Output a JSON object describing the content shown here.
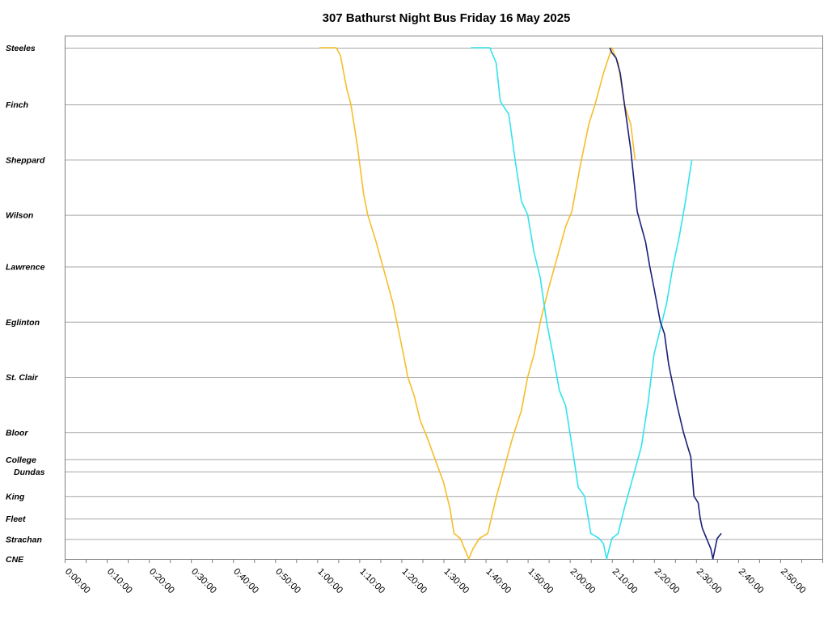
{
  "chart_data": {
    "type": "line",
    "title": "307 Bathurst Night Bus Friday 16 May 2025",
    "xlabel": "",
    "ylabel": "",
    "xlim": [
      "0:00:00",
      "3:00:00"
    ],
    "x_tick_labels": [
      "0:00:00",
      "0:10:00",
      "0:20:00",
      "0:30:00",
      "0:40:00",
      "0:50:00",
      "1:00:00",
      "1:10:00",
      "1:20:00",
      "1:30:00",
      "1:40:00",
      "1:50:00",
      "2:00:00",
      "2:10:00",
      "2:20:00",
      "2:30:00",
      "2:40:00",
      "2:50:00"
    ],
    "stops": [
      {
        "name": "Steeles",
        "pos": 0.0
      },
      {
        "name": "Finch",
        "pos": 0.111
      },
      {
        "name": "Sheppard",
        "pos": 0.219
      },
      {
        "name": "Wilson",
        "pos": 0.327
      },
      {
        "name": "Lawrence",
        "pos": 0.428
      },
      {
        "name": "Eglinton",
        "pos": 0.536
      },
      {
        "name": "St. Clair",
        "pos": 0.644
      },
      {
        "name": "Bloor",
        "pos": 0.752
      },
      {
        "name": "College",
        "pos": 0.805
      },
      {
        "name": "Dundas",
        "pos": 0.829
      },
      {
        "name": "King",
        "pos": 0.877
      },
      {
        "name": "Fleet",
        "pos": 0.921
      },
      {
        "name": "Strachan",
        "pos": 0.961
      },
      {
        "name": "CNE",
        "pos": 1.0
      }
    ],
    "grid": true,
    "series": [
      {
        "color": "#F5BE2A",
        "points": [
          [
            "1:00:30",
            0.0
          ],
          [
            "1:04:30",
            0.0
          ],
          [
            "1:05:30",
            0.015
          ],
          [
            "1:07:00",
            0.08
          ],
          [
            "1:08:00",
            0.111
          ],
          [
            "1:09:30",
            0.19
          ],
          [
            "1:11:00",
            0.285
          ],
          [
            "1:12:00",
            0.327
          ],
          [
            "1:14:00",
            0.38
          ],
          [
            "1:16:00",
            0.44
          ],
          [
            "1:18:00",
            0.5
          ],
          [
            "1:20:30",
            0.6
          ],
          [
            "1:21:30",
            0.644
          ],
          [
            "1:23:00",
            0.68
          ],
          [
            "1:24:30",
            0.73
          ],
          [
            "1:26:00",
            0.76
          ],
          [
            "1:28:00",
            0.805
          ],
          [
            "1:30:00",
            0.85
          ],
          [
            "1:31:30",
            0.9
          ],
          [
            "1:32:30",
            0.95
          ],
          [
            "1:34:00",
            0.96
          ],
          [
            "1:36:00",
            1.0
          ],
          [
            "1:37:00",
            0.98
          ],
          [
            "1:38:30",
            0.96
          ],
          [
            "1:40:30",
            0.95
          ],
          [
            "1:42:30",
            0.88
          ],
          [
            "1:44:30",
            0.82
          ],
          [
            "1:46:30",
            0.76
          ],
          [
            "1:48:30",
            0.71
          ],
          [
            "1:50:00",
            0.644
          ],
          [
            "1:51:30",
            0.6
          ],
          [
            "1:53:00",
            0.536
          ],
          [
            "1:55:00",
            0.47
          ],
          [
            "1:57:00",
            0.41
          ],
          [
            "1:59:00",
            0.35
          ],
          [
            "2:00:30",
            0.32
          ],
          [
            "2:02:30",
            0.23
          ],
          [
            "2:04:30",
            0.15
          ],
          [
            "2:06:00",
            0.111
          ],
          [
            "2:08:00",
            0.05
          ],
          [
            "2:10:00",
            0.0
          ],
          [
            "2:11:30",
            0.03
          ],
          [
            "2:13:00",
            0.111
          ],
          [
            "2:14:30",
            0.15
          ],
          [
            "2:15:30",
            0.219
          ]
        ]
      },
      {
        "color": "#33E3EE",
        "points": [
          [
            "1:36:30",
            0.0
          ],
          [
            "1:41:00",
            0.0
          ],
          [
            "1:42:30",
            0.03
          ],
          [
            "1:43:30",
            0.105
          ],
          [
            "1:45:30",
            0.13
          ],
          [
            "1:47:00",
            0.219
          ],
          [
            "1:48:30",
            0.3
          ],
          [
            "1:50:00",
            0.327
          ],
          [
            "1:51:30",
            0.4
          ],
          [
            "1:53:00",
            0.45
          ],
          [
            "1:54:30",
            0.536
          ],
          [
            "1:56:00",
            0.6
          ],
          [
            "1:57:30",
            0.67
          ],
          [
            "1:59:00",
            0.7
          ],
          [
            "2:00:00",
            0.752
          ],
          [
            "2:01:00",
            0.805
          ],
          [
            "2:02:00",
            0.86
          ],
          [
            "2:03:30",
            0.877
          ],
          [
            "2:05:00",
            0.95
          ],
          [
            "2:07:00",
            0.96
          ],
          [
            "2:08:00",
            0.97
          ],
          [
            "2:08:45",
            1.0
          ],
          [
            "2:10:00",
            0.96
          ],
          [
            "2:11:30",
            0.95
          ],
          [
            "2:13:00",
            0.9
          ],
          [
            "2:15:00",
            0.84
          ],
          [
            "2:17:00",
            0.78
          ],
          [
            "2:18:30",
            0.7
          ],
          [
            "2:20:00",
            0.6
          ],
          [
            "2:21:30",
            0.55
          ],
          [
            "2:23:00",
            0.5
          ],
          [
            "2:24:30",
            0.428
          ],
          [
            "2:26:00",
            0.37
          ],
          [
            "2:27:30",
            0.3
          ],
          [
            "2:29:00",
            0.219
          ]
        ]
      },
      {
        "color": "#1A1F78",
        "points": [
          [
            "2:09:30",
            0.0
          ],
          [
            "2:10:00",
            0.01
          ],
          [
            "2:11:00",
            0.02
          ],
          [
            "2:12:00",
            0.05
          ],
          [
            "2:13:00",
            0.111
          ],
          [
            "2:14:30",
            0.2
          ],
          [
            "2:16:00",
            0.32
          ],
          [
            "2:17:00",
            0.35
          ],
          [
            "2:18:00",
            0.38
          ],
          [
            "2:19:00",
            0.428
          ],
          [
            "2:20:00",
            0.47
          ],
          [
            "2:21:30",
            0.536
          ],
          [
            "2:22:30",
            0.56
          ],
          [
            "2:23:30",
            0.62
          ],
          [
            "2:24:30",
            0.66
          ],
          [
            "2:25:30",
            0.7
          ],
          [
            "2:27:00",
            0.752
          ],
          [
            "2:28:00",
            0.78
          ],
          [
            "2:28:45",
            0.8
          ],
          [
            "2:29:30",
            0.877
          ],
          [
            "2:30:30",
            0.89
          ],
          [
            "2:31:00",
            0.921
          ],
          [
            "2:31:30",
            0.94
          ],
          [
            "2:32:30",
            0.96
          ],
          [
            "2:33:30",
            0.98
          ],
          [
            "2:34:00",
            1.0
          ],
          [
            "2:35:00",
            0.96
          ],
          [
            "2:36:00",
            0.95
          ]
        ]
      }
    ]
  }
}
